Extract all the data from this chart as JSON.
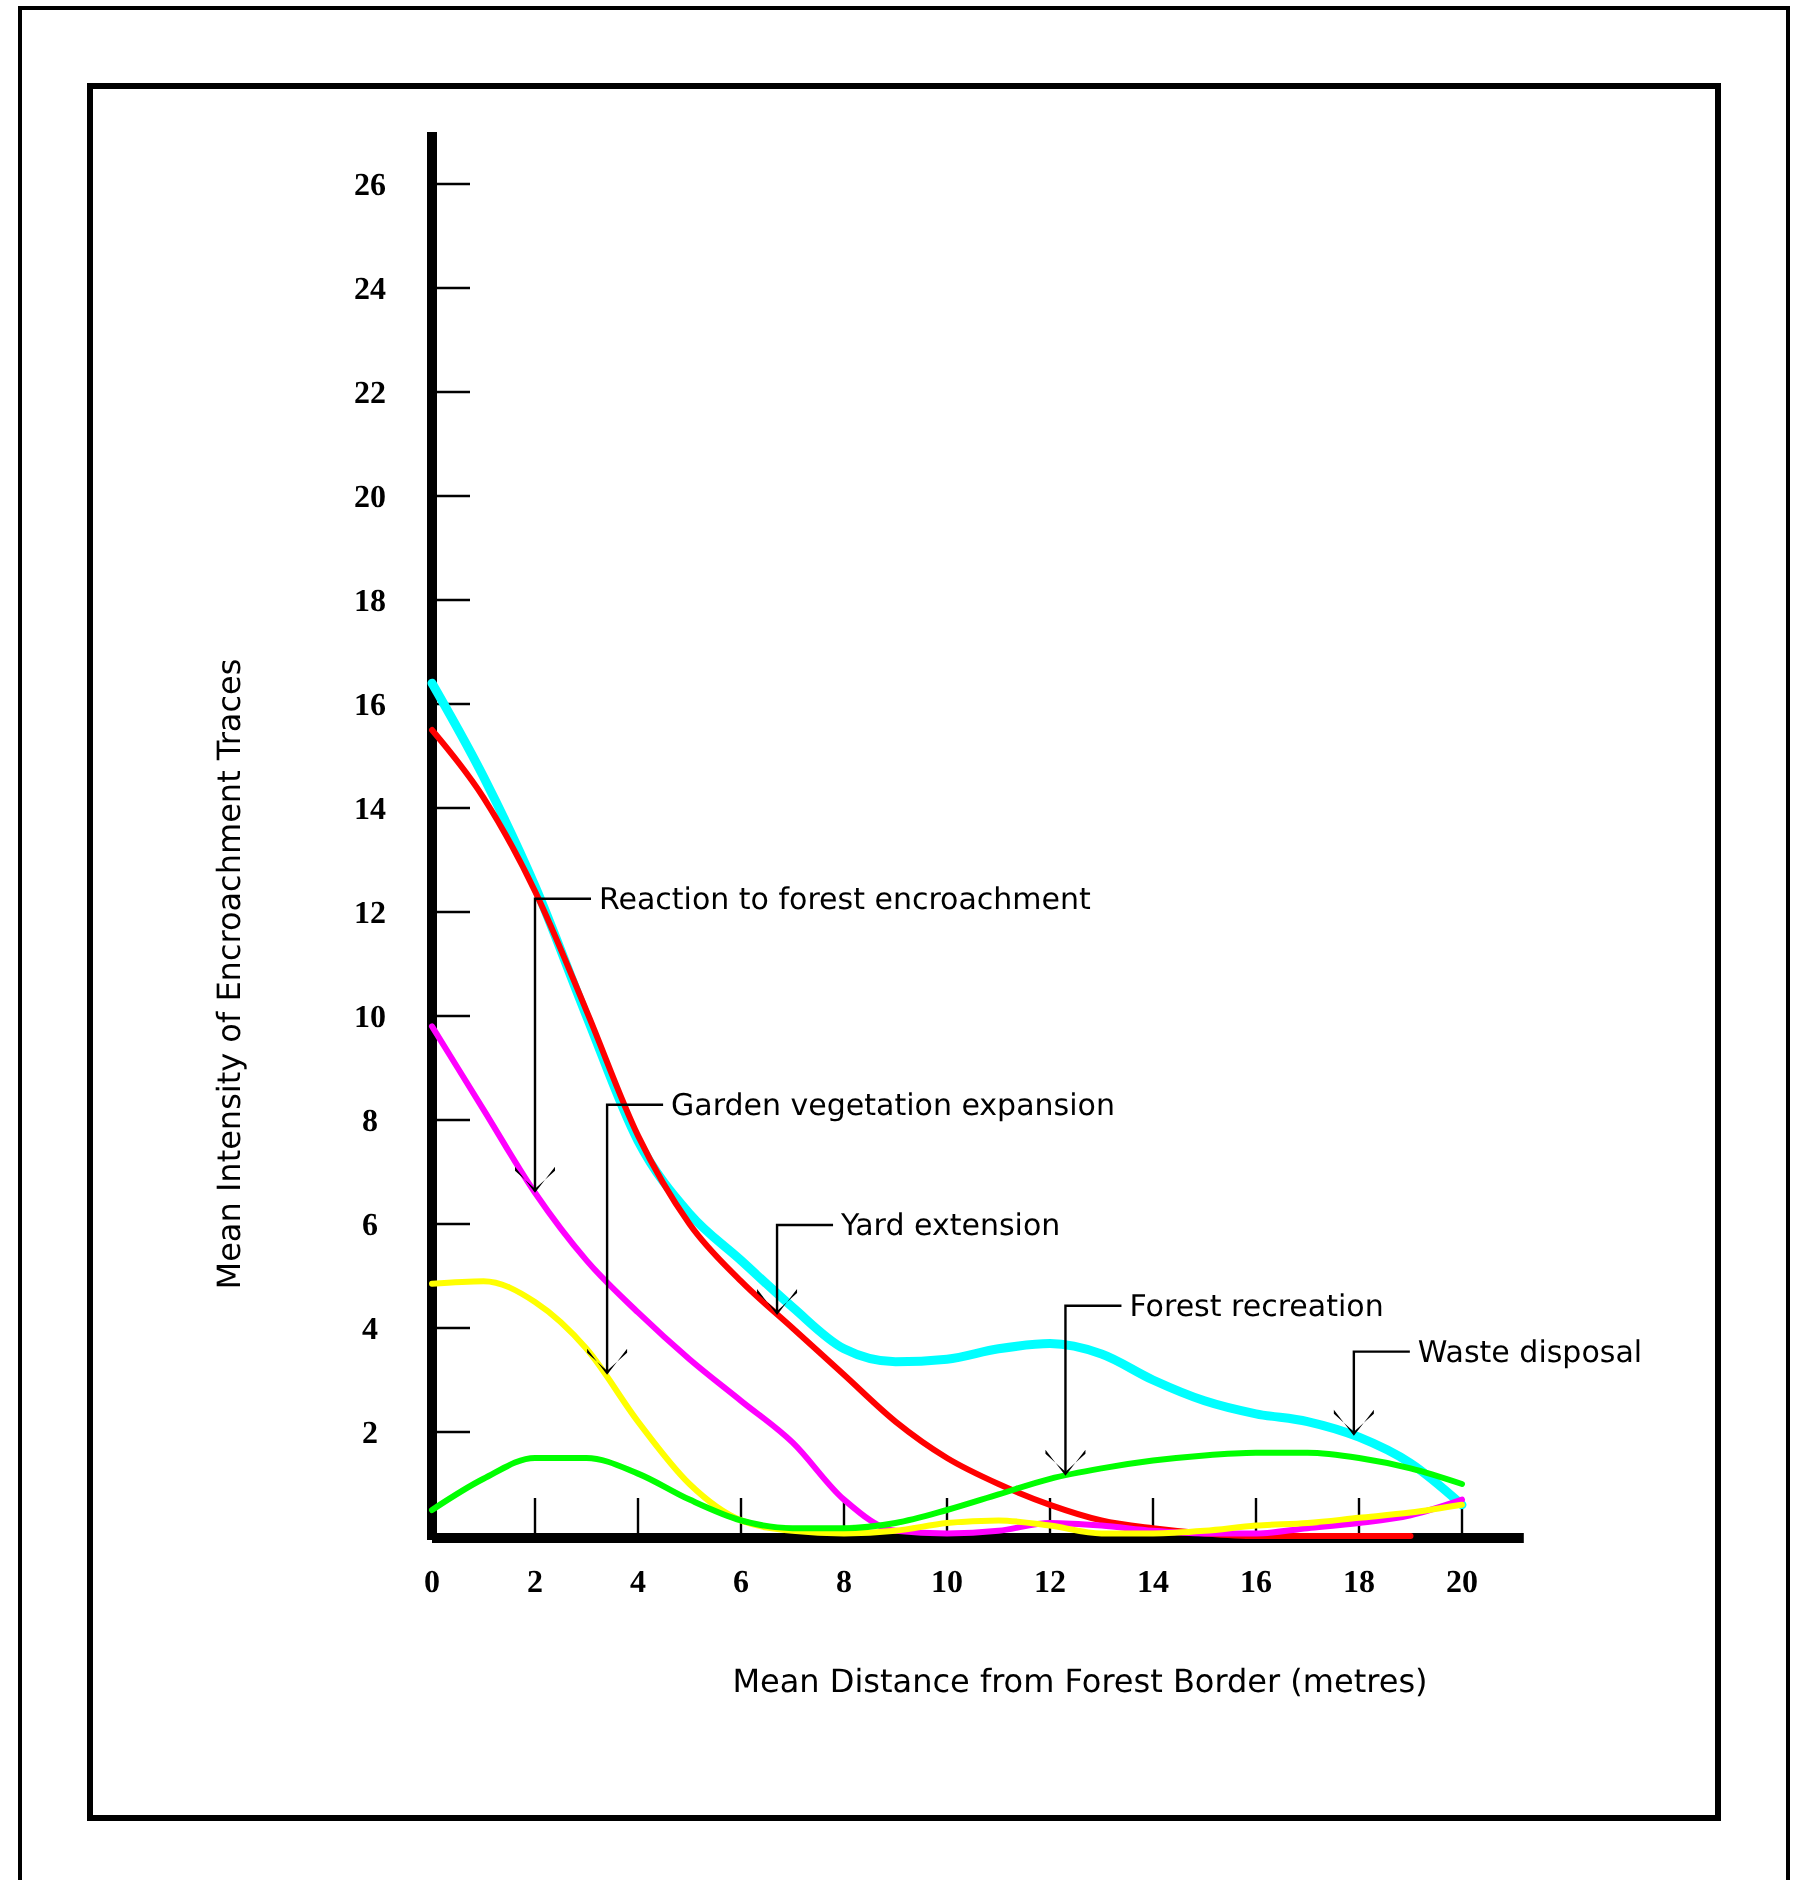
{
  "chart_data": {
    "type": "line",
    "xlabel": "Mean Distance from Forest Border (metres)",
    "ylabel": "Mean Intensity of Encroachment Traces",
    "x": [
      0,
      1,
      2,
      3,
      4,
      5,
      6,
      7,
      8,
      9,
      10,
      11,
      12,
      13,
      14,
      15,
      16,
      17,
      18,
      19,
      20
    ],
    "series": [
      {
        "color": "#00ffff",
        "values": [
          16.4,
          14.6,
          12.5,
          10,
          7.6,
          6.2,
          5.3,
          4.4,
          3.6,
          3.35,
          3.4,
          3.6,
          3.7,
          3.5,
          3.0,
          2.6,
          2.35,
          2.2,
          1.9,
          1.4,
          0.6
        ]
      },
      {
        "color": "#ff0000",
        "values": [
          15.5,
          14.2,
          12.4,
          10.1,
          7.7,
          6.0,
          4.9,
          4.0,
          3.1,
          2.2,
          1.5,
          1.0,
          0.6,
          0.3,
          0.15,
          0.05,
          0,
          0,
          0,
          0,
          null
        ]
      },
      {
        "color": "#ff00ff",
        "values": [
          9.8,
          8.2,
          6.6,
          5.3,
          4.3,
          3.4,
          2.6,
          1.8,
          0.7,
          0.1,
          0.05,
          0.1,
          0.25,
          0.2,
          0.1,
          0.05,
          0.05,
          0.15,
          0.25,
          0.4,
          0.7
        ]
      },
      {
        "color": "#ffff00",
        "values": [
          4.85,
          4.9,
          4.5,
          3.6,
          2.2,
          1.0,
          0.3,
          0.1,
          0.05,
          0.1,
          0.25,
          0.3,
          0.2,
          0.05,
          0.05,
          0.1,
          0.2,
          0.25,
          0.35,
          0.45,
          0.6
        ]
      },
      {
        "color": "#00ff00",
        "values": [
          0.5,
          1.1,
          1.5,
          1.5,
          1.2,
          0.7,
          0.3,
          0.15,
          0.15,
          0.25,
          0.5,
          0.8,
          1.1,
          1.3,
          1.45,
          1.55,
          1.6,
          1.6,
          1.5,
          1.3,
          1.0
        ]
      }
    ],
    "xlim": [
      0,
      21.2
    ],
    "ylim": [
      0,
      27
    ],
    "xticks": [
      0,
      2,
      4,
      6,
      8,
      10,
      12,
      14,
      16,
      18,
      20
    ],
    "yticks": [
      {
        "value": 0,
        "label": null
      },
      2,
      4,
      6,
      8,
      10,
      12,
      14,
      16,
      18,
      20,
      22,
      24,
      26
    ],
    "grid": false,
    "marker": "none",
    "line_style": "solid",
    "annotations": [
      {
        "text": "Reaction to forest encroachment",
        "x": 2,
        "y": 6.6
      },
      {
        "text": "Garden vegetation expansion",
        "x": 3.4,
        "y": 3.1
      },
      {
        "text": "Yard extension",
        "x": 6.7,
        "y": 4.25
      },
      {
        "text": "Forest recreation",
        "x": 12.3,
        "y": 1.16
      },
      {
        "text": "Waste disposal",
        "x": 17.9,
        "y": 1.93
      }
    ]
  }
}
